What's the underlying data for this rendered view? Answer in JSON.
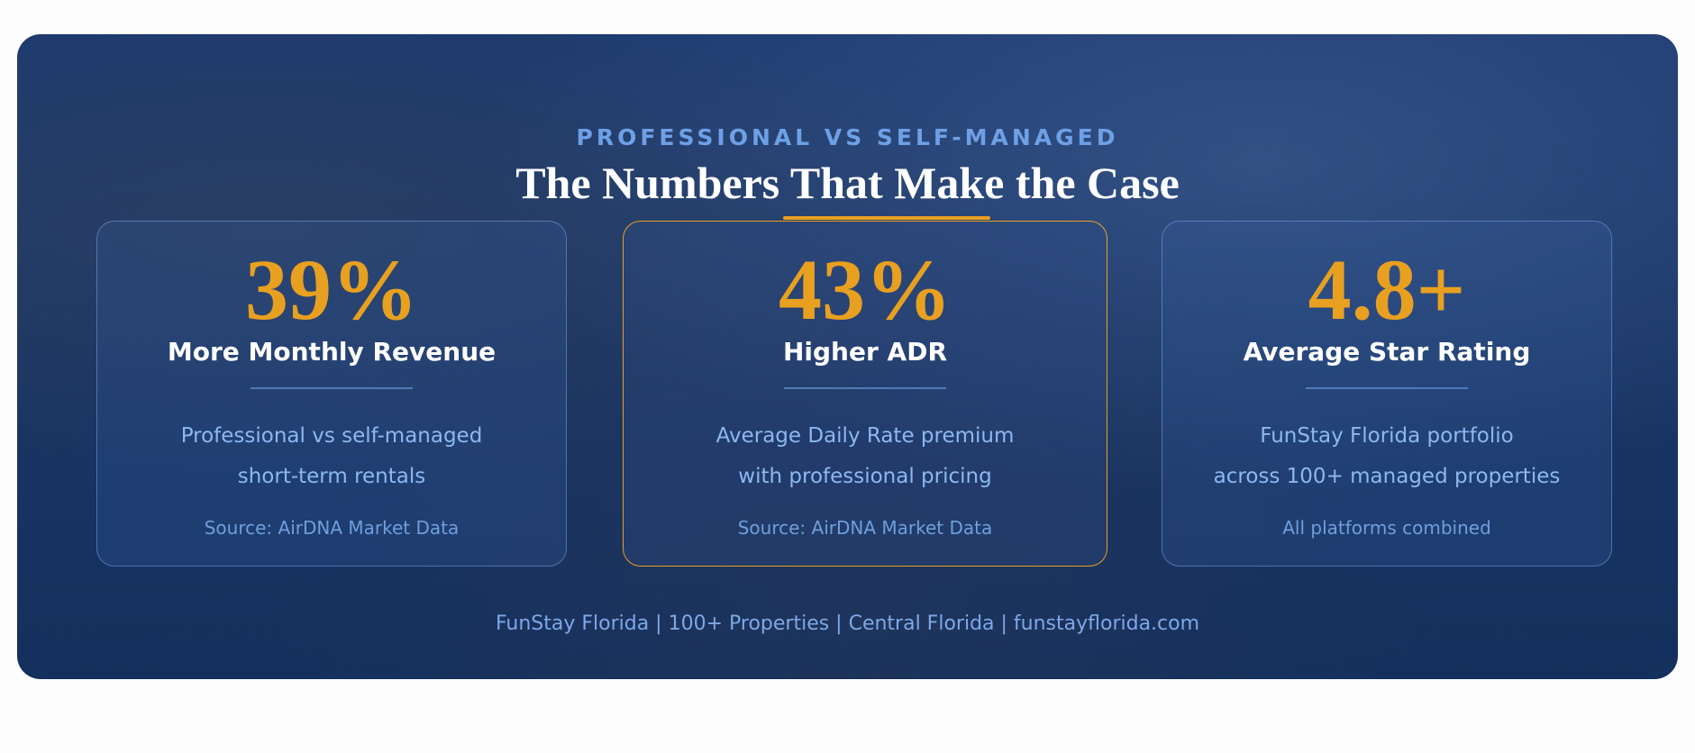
{
  "header": {
    "eyebrow": "PROFESSIONAL VS SELF-MANAGED",
    "title": "The Numbers That Make the Case"
  },
  "cards": [
    {
      "stat": "39%",
      "label": "More Monthly Revenue",
      "description": [
        "Professional vs self-managed",
        "short-term rentals"
      ],
      "source": "Source: AirDNA Market Data"
    },
    {
      "stat": "43%",
      "label": "Higher ADR",
      "description": [
        "Average Daily Rate premium",
        "with professional pricing"
      ],
      "source": "Source: AirDNA Market Data"
    },
    {
      "stat": "4.8+",
      "label": "Average Star Rating",
      "description": [
        "FunStay Florida portfolio",
        "across 100+ managed properties"
      ],
      "source": "All platforms combined"
    }
  ],
  "footer": "FunStay Florida | 100+ Properties | Central Florida | funstayflorida.com"
}
